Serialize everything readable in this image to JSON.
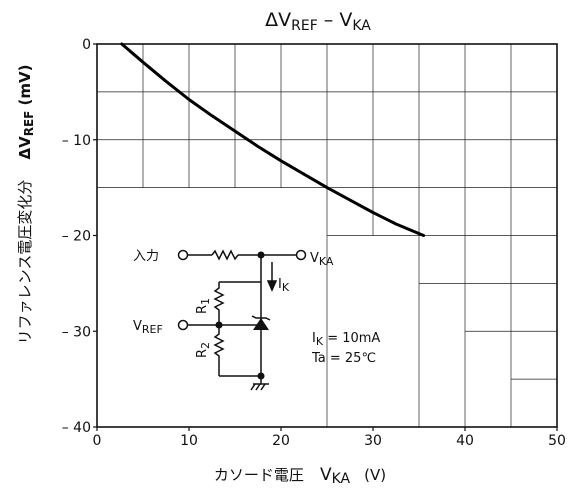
{
  "chart_data": {
    "type": "line",
    "title": {
      "delta": "Δ",
      "main": "V",
      "sub": "REF",
      "sep": " –  ",
      "main2": "V",
      "sub2": "KA"
    },
    "xlabel": {
      "jp": "カソード電圧",
      "sym": "V",
      "sub": "KA",
      "unit": "(V)"
    },
    "ylabel": {
      "jp": "リファレンス電圧変化分",
      "sym": "ΔV",
      "sub": "REF",
      "unit": "(mV)"
    },
    "xlim": [
      0,
      50
    ],
    "ylim": [
      -40,
      0
    ],
    "xticks": [
      0,
      10,
      20,
      30,
      40,
      50
    ],
    "yticks": [
      0,
      -10,
      -20,
      -30,
      -40
    ],
    "ytick_labels": [
      "0",
      "– 10",
      "– 20",
      "– 30",
      "– 40"
    ],
    "grid": true,
    "series": [
      {
        "x": [
          2.7,
          5,
          7.5,
          10,
          12.5,
          15,
          17.5,
          20,
          22.5,
          25,
          27.5,
          30,
          32.5,
          35.5
        ],
        "y": [
          0,
          -1.9,
          -3.9,
          -5.8,
          -7.5,
          -9.1,
          -10.7,
          -12.2,
          -13.6,
          -15,
          -16.3,
          -17.6,
          -18.8,
          -20
        ]
      }
    ],
    "circuit": {
      "input_label": "入力",
      "output": {
        "sym": "V",
        "sub": "KA"
      },
      "current": {
        "sym": "I",
        "sub": "K"
      },
      "r1": {
        "sym": "R",
        "sub": "1"
      },
      "r2": {
        "sym": "R",
        "sub": "2"
      },
      "vref": {
        "sym": "V",
        "sub": "REF"
      },
      "cond_ik": {
        "sym": "I",
        "sub": "K",
        "value": " = 10mA"
      },
      "cond_ta": "Ta = 25℃"
    }
  }
}
